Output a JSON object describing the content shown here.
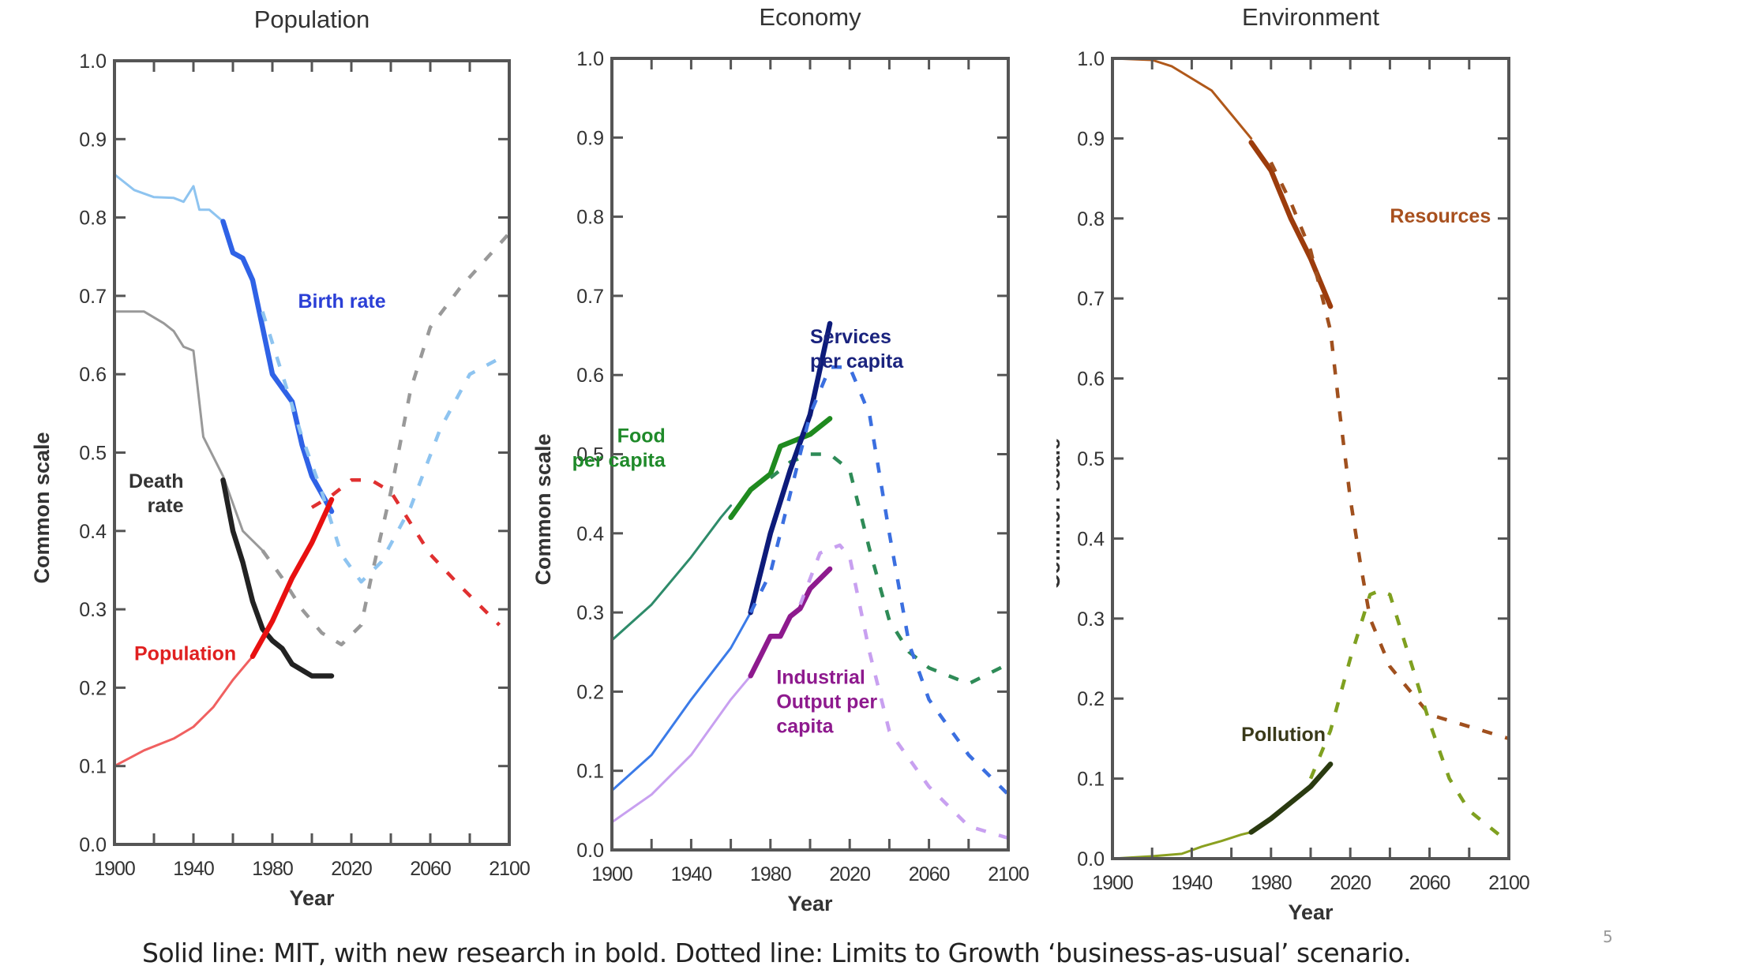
{
  "caption": "Solid line: MIT, with new research in bold. Dotted line: Limits to Growth ‘business-as-usual’ scenario.",
  "page_number": "5",
  "chart_data": [
    {
      "type": "line",
      "title": "Population",
      "xlabel": "Year",
      "ylabel": "Common scale",
      "xlim": [
        1900,
        2100
      ],
      "ylim": [
        0.0,
        1.0
      ],
      "xticks": [
        "1900",
        "1940",
        "1980",
        "2020",
        "2060",
        "2100"
      ],
      "yticks": [
        "0.0",
        "0.1",
        "0.2",
        "0.3",
        "0.4",
        "0.5",
        "0.6",
        "0.7",
        "0.8",
        "0.9",
        "1.0"
      ],
      "grid": false,
      "labels": [
        {
          "text": [
            "Birth rate"
          ],
          "color": "#2b3fd6"
        },
        {
          "text": [
            "Death",
            "rate"
          ],
          "color": "#333333"
        },
        {
          "text": [
            "Population"
          ],
          "color": "#e02020"
        }
      ],
      "series": [
        {
          "name": "Birth rate (MIT)",
          "style": "thin",
          "color": "#8ec4f0",
          "x": [
            1900,
            1910,
            1920,
            1930,
            1935,
            1940,
            1943,
            1948,
            1955
          ],
          "y": [
            0.855,
            0.835,
            0.826,
            0.825,
            0.82,
            0.84,
            0.81,
            0.81,
            0.795
          ]
        },
        {
          "name": "Birth rate (new research)",
          "style": "bold",
          "color": "#2f62e6",
          "x": [
            1955,
            1960,
            1965,
            1970,
            1975,
            1980,
            1990,
            1995,
            2000,
            2010
          ],
          "y": [
            0.795,
            0.755,
            0.748,
            0.72,
            0.66,
            0.6,
            0.565,
            0.51,
            0.47,
            0.425
          ]
        },
        {
          "name": "Birth rate (LtG BAU)",
          "style": "dashed",
          "color": "#8ec4f0",
          "x": [
            1975,
            1985,
            1995,
            2005,
            2015,
            2025,
            2035,
            2050,
            2065,
            2080,
            2095
          ],
          "y": [
            0.68,
            0.6,
            0.52,
            0.45,
            0.37,
            0.335,
            0.36,
            0.43,
            0.53,
            0.6,
            0.62
          ]
        },
        {
          "name": "Death rate (MIT)",
          "style": "thin",
          "color": "#999999",
          "x": [
            1900,
            1915,
            1925,
            1930,
            1935,
            1940,
            1945,
            1955,
            1965,
            1975
          ],
          "y": [
            0.68,
            0.68,
            0.665,
            0.655,
            0.635,
            0.63,
            0.52,
            0.47,
            0.4,
            0.375
          ]
        },
        {
          "name": "Death rate (new research)",
          "style": "bold",
          "color": "#222222",
          "x": [
            1955,
            1960,
            1965,
            1970,
            1975,
            1980,
            1985,
            1990,
            2000,
            2010
          ],
          "y": [
            0.465,
            0.4,
            0.36,
            0.31,
            0.275,
            0.26,
            0.25,
            0.23,
            0.215,
            0.215
          ]
        },
        {
          "name": "Death rate (LtG BAU)",
          "style": "dashed",
          "color": "#999999",
          "x": [
            1975,
            1985,
            1995,
            2005,
            2015,
            2025,
            2030,
            2040,
            2050,
            2060,
            2075,
            2100
          ],
          "y": [
            0.375,
            0.34,
            0.3,
            0.27,
            0.255,
            0.28,
            0.34,
            0.45,
            0.58,
            0.66,
            0.71,
            0.78
          ]
        },
        {
          "name": "Population (MIT)",
          "style": "thin",
          "color": "#f06060",
          "x": [
            1900,
            1915,
            1930,
            1940,
            1950,
            1960,
            1970
          ],
          "y": [
            0.1,
            0.12,
            0.135,
            0.15,
            0.175,
            0.21,
            0.24
          ]
        },
        {
          "name": "Population (new research)",
          "style": "bold",
          "color": "#e81010",
          "x": [
            1970,
            1980,
            1990,
            2000,
            2010
          ],
          "y": [
            0.24,
            0.285,
            0.34,
            0.385,
            0.44
          ]
        },
        {
          "name": "Population (LtG BAU)",
          "style": "dashed",
          "color": "#e03030",
          "x": [
            2000,
            2010,
            2020,
            2030,
            2040,
            2050,
            2060,
            2075,
            2095
          ],
          "y": [
            0.43,
            0.445,
            0.465,
            0.465,
            0.45,
            0.41,
            0.37,
            0.33,
            0.28
          ]
        }
      ]
    },
    {
      "type": "line",
      "title": "Economy",
      "xlabel": "Year",
      "ylabel": "Common scale",
      "xlim": [
        1900,
        2100
      ],
      "ylim": [
        0.0,
        1.0
      ],
      "xticks": [
        "1900",
        "1940",
        "1980",
        "2020",
        "2060",
        "2100"
      ],
      "yticks": [
        "0.0",
        "0.1",
        "0.2",
        "0.3",
        "0.4",
        "0.5",
        "0.6",
        "0.7",
        "0.8",
        "0.9",
        "1.0"
      ],
      "grid": false,
      "labels": [
        {
          "text": [
            "Food",
            "per capita"
          ],
          "color": "#1f8a2a"
        },
        {
          "text": [
            "Services",
            "per capita"
          ],
          "color": "#1a237e"
        },
        {
          "text": [
            "Industrial",
            "Output per",
            "capita"
          ],
          "color": "#8e1a8e"
        }
      ],
      "series": [
        {
          "name": "Food per capita (MIT)",
          "style": "thin",
          "color": "#2e8b6a",
          "x": [
            1900,
            1920,
            1940,
            1955,
            1960
          ],
          "y": [
            0.265,
            0.31,
            0.37,
            0.42,
            0.435
          ]
        },
        {
          "name": "Food per capita (new research)",
          "style": "bold",
          "color": "#1f8a1f",
          "x": [
            1960,
            1970,
            1980,
            1985,
            1990,
            2000,
            2010
          ],
          "y": [
            0.42,
            0.455,
            0.475,
            0.51,
            0.515,
            0.525,
            0.545
          ]
        },
        {
          "name": "Food per capita (LtG BAU)",
          "style": "dashed",
          "color": "#2e8b57",
          "x": [
            1980,
            1990,
            2000,
            2010,
            2020,
            2030,
            2040,
            2050,
            2060,
            2080,
            2100
          ],
          "y": [
            0.47,
            0.49,
            0.5,
            0.5,
            0.48,
            0.38,
            0.29,
            0.25,
            0.23,
            0.21,
            0.235
          ]
        },
        {
          "name": "Services per capita (MIT)",
          "style": "thin",
          "color": "#3b7be8",
          "x": [
            1900,
            1920,
            1940,
            1960,
            1970
          ],
          "y": [
            0.075,
            0.12,
            0.19,
            0.255,
            0.3
          ]
        },
        {
          "name": "Services per capita (new research)",
          "style": "bold",
          "color": "#0d1b7a",
          "x": [
            1970,
            1980,
            1990,
            2000,
            2010
          ],
          "y": [
            0.3,
            0.4,
            0.48,
            0.55,
            0.665
          ]
        },
        {
          "name": "Services per capita (LtG BAU)",
          "style": "dashed",
          "color": "#3b6fe0",
          "x": [
            1970,
            1980,
            1990,
            2000,
            2010,
            2020,
            2030,
            2040,
            2050,
            2060,
            2080,
            2100
          ],
          "y": [
            0.3,
            0.35,
            0.45,
            0.55,
            0.61,
            0.61,
            0.55,
            0.4,
            0.26,
            0.19,
            0.12,
            0.07
          ]
        },
        {
          "name": "Industrial output per capita (MIT)",
          "style": "thin",
          "color": "#c8a0f0",
          "x": [
            1900,
            1920,
            1940,
            1960,
            1970
          ],
          "y": [
            0.035,
            0.07,
            0.12,
            0.19,
            0.22
          ]
        },
        {
          "name": "Industrial output per capita (new research)",
          "style": "bold",
          "color": "#8e1a8e",
          "x": [
            1970,
            1975,
            1980,
            1985,
            1990,
            1995,
            2000,
            2010
          ],
          "y": [
            0.22,
            0.245,
            0.27,
            0.27,
            0.295,
            0.305,
            0.33,
            0.355
          ]
        },
        {
          "name": "Industrial output per capita (LtG BAU)",
          "style": "dashed",
          "color": "#c8a0f0",
          "x": [
            1995,
            2005,
            2015,
            2020,
            2030,
            2040,
            2060,
            2080,
            2100
          ],
          "y": [
            0.31,
            0.375,
            0.385,
            0.37,
            0.25,
            0.15,
            0.08,
            0.03,
            0.015
          ]
        }
      ]
    },
    {
      "type": "line",
      "title": "Environment",
      "xlabel": "Year",
      "ylabel": "Common scale",
      "xlim": [
        1900,
        2100
      ],
      "ylim": [
        0.0,
        1.0
      ],
      "xticks": [
        "1900",
        "1940",
        "1980",
        "2020",
        "2060",
        "2100"
      ],
      "yticks": [
        "0.0",
        "0.1",
        "0.2",
        "0.3",
        "0.4",
        "0.5",
        "0.6",
        "0.7",
        "0.8",
        "0.9",
        "1.0"
      ],
      "grid": false,
      "labels": [
        {
          "text": [
            "Resources"
          ],
          "color": "#a8501e"
        },
        {
          "text": [
            "Pollution"
          ],
          "color": "#3a3a1a"
        }
      ],
      "series": [
        {
          "name": "Resources (MIT)",
          "style": "thin",
          "color": "#b0581a",
          "x": [
            1900,
            1920,
            1930,
            1940,
            1950,
            1960,
            1970
          ],
          "y": [
            1.0,
            0.998,
            0.99,
            0.975,
            0.96,
            0.93,
            0.9
          ]
        },
        {
          "name": "Resources (new research)",
          "style": "bold",
          "color": "#9c3c0c",
          "x": [
            1970,
            1980,
            1990,
            2000,
            2010
          ],
          "y": [
            0.895,
            0.86,
            0.8,
            0.75,
            0.69
          ]
        },
        {
          "name": "Resources (LtG BAU)",
          "style": "dashed",
          "color": "#a0501e",
          "x": [
            1980,
            1990,
            2000,
            2010,
            2015,
            2020,
            2025,
            2030,
            2040,
            2050,
            2060,
            2080,
            2100
          ],
          "y": [
            0.87,
            0.82,
            0.76,
            0.66,
            0.55,
            0.45,
            0.37,
            0.3,
            0.24,
            0.21,
            0.18,
            0.165,
            0.15
          ]
        },
        {
          "name": "Pollution (MIT)",
          "style": "thin",
          "color": "#8aa020",
          "x": [
            1900,
            1920,
            1935,
            1945,
            1955,
            1965,
            1970
          ],
          "y": [
            0.0,
            0.003,
            0.006,
            0.015,
            0.022,
            0.03,
            0.033
          ]
        },
        {
          "name": "Pollution (new research)",
          "style": "bold",
          "color": "#2a3a10",
          "x": [
            1970,
            1980,
            1990,
            2000,
            2010
          ],
          "y": [
            0.033,
            0.05,
            0.07,
            0.09,
            0.118
          ]
        },
        {
          "name": "Pollution (LtG BAU)",
          "style": "dashed",
          "color": "#7fa020",
          "x": [
            2000,
            2010,
            2020,
            2030,
            2035,
            2040,
            2050,
            2060,
            2070,
            2080,
            2100
          ],
          "y": [
            0.1,
            0.16,
            0.25,
            0.33,
            0.335,
            0.33,
            0.25,
            0.17,
            0.1,
            0.06,
            0.02
          ]
        }
      ]
    }
  ]
}
